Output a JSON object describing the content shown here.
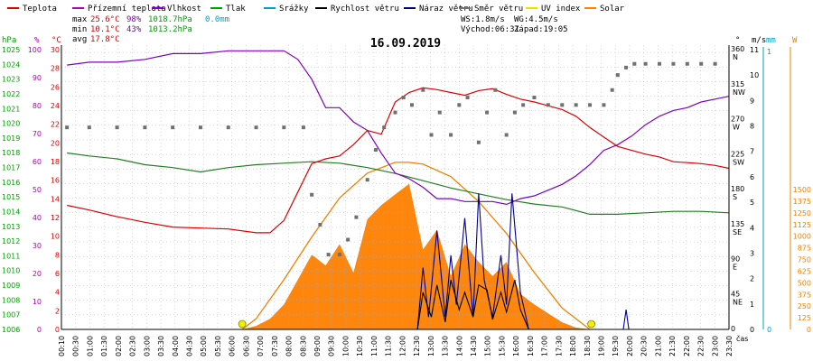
{
  "chart_data": {
    "type": "line",
    "title": "16.09.2019",
    "legend": [
      {
        "name": "Teplota",
        "color": "#e00000"
      },
      {
        "name": "Přízemní teplota",
        "color": "#b000b0"
      },
      {
        "name": "Vlhkost",
        "color": "#8000c0"
      },
      {
        "name": "Tlak",
        "color": "#00a000"
      },
      {
        "name": "Srážky",
        "color": "#00a0c0"
      },
      {
        "name": "Rychlost větru",
        "color": "#000000"
      },
      {
        "name": "Náraz větru",
        "color": "#000090"
      },
      {
        "name": "Směr větru",
        "color": "#707070"
      },
      {
        "name": "UV index",
        "color": "#f0e000"
      },
      {
        "name": "Solar",
        "color": "#ff8000"
      }
    ],
    "stats": {
      "max_prefix": "max",
      "max_temp": "25.6°C",
      "max_hum": "98%",
      "max_press": "1018.7hPa",
      "max_rain": "0.0mm",
      "min_prefix": "min",
      "min_temp": "10.1°C",
      "min_hum": "43%",
      "min_press": "1013.2hPa",
      "avg_prefix": "avg",
      "avg_temp": "17.8°C",
      "ws": "WS:1.8m/s",
      "wg": "WG:4.5m/s",
      "sunrise": "Východ:06:31",
      "sunset": "Západ:19:05"
    },
    "axes": {
      "hpa_unit": "hPa",
      "pct_unit": "%",
      "c_unit": "°C",
      "dir_unit": "°",
      "ms_unit": "m/s",
      "mm_unit": "mm",
      "w_unit": "W",
      "xlabel": "čas",
      "hpa_ticks": [
        "1025",
        "1024",
        "1023",
        "1022",
        "1021",
        "1020",
        "1019",
        "1018",
        "1017",
        "1016",
        "1015",
        "1014",
        "1013",
        "1012",
        "1011",
        "1010",
        "1009",
        "1008",
        "1007",
        "1006"
      ],
      "pct_ticks": [
        "100",
        "90",
        "80",
        "70",
        "60",
        "50",
        "40",
        "30",
        "20",
        "10",
        "0"
      ],
      "c_ticks": [
        "30",
        "28",
        "26",
        "24",
        "22",
        "20",
        "18",
        "16",
        "14",
        "12",
        "10",
        "8",
        "6",
        "4",
        "2",
        "0"
      ],
      "dir_ticks": [
        [
          "360",
          "N"
        ],
        [
          "315",
          "NW"
        ],
        [
          "270",
          "W"
        ],
        [
          "225",
          "SW"
        ],
        [
          "180",
          "S"
        ],
        [
          "135",
          "SE"
        ],
        [
          "90",
          "E"
        ],
        [
          "45",
          "NE"
        ],
        [
          "0",
          ""
        ]
      ],
      "ms_ticks": [
        "11",
        "10",
        "9",
        "8",
        "7",
        "6",
        "5",
        "4",
        "3",
        "2",
        "1",
        "0"
      ],
      "mm_ticks": [
        "1",
        "0"
      ],
      "w_ticks": [
        "1500",
        "1375",
        "1250",
        "1125",
        "1000",
        "875",
        "750",
        "625",
        "500",
        "375",
        "250",
        "125",
        "0"
      ],
      "x_ticks": [
        "00:10",
        "00:30",
        "01:00",
        "01:30",
        "02:00",
        "02:30",
        "03:00",
        "03:30",
        "04:00",
        "04:30",
        "05:00",
        "05:30",
        "06:00",
        "06:30",
        "07:00",
        "07:30",
        "08:00",
        "08:30",
        "09:00",
        "09:30",
        "10:00",
        "10:30",
        "11:00",
        "11:30",
        "12:00",
        "12:30",
        "13:00",
        "13:30",
        "14:00",
        "14:30",
        "15:00",
        "15:30",
        "16:00",
        "16:30",
        "17:00",
        "17:30",
        "18:00",
        "18:30",
        "19:00",
        "19:30",
        "20:00",
        "20:30",
        "21:00",
        "21:30",
        "22:00",
        "22:30",
        "23:00",
        "23:30"
      ],
      "x_range_hours": [
        0,
        24
      ],
      "temp_range": [
        0,
        30
      ],
      "hum_range": [
        0,
        100
      ],
      "press_range": [
        1006,
        1025.5
      ],
      "wind_range": [
        0,
        11.5
      ],
      "dir_range": [
        0,
        380
      ],
      "solar_range": [
        0,
        1600
      ]
    },
    "temperature": {
      "x": [
        0.2,
        1,
        2,
        3,
        4,
        5,
        6,
        7,
        7.5,
        8,
        8.5,
        9,
        9.5,
        10,
        10.5,
        11,
        11.5,
        12,
        12.5,
        13,
        13.5,
        14,
        14.5,
        15,
        15.5,
        16,
        16.5,
        17,
        17.5,
        18,
        18.5,
        19,
        19.5,
        20,
        20.5,
        21,
        21.5,
        22,
        22.5,
        23,
        23.5,
        24
      ],
      "y": [
        13.1,
        12.6,
        11.9,
        11.3,
        10.8,
        10.7,
        10.6,
        10.2,
        10.2,
        11.5,
        14.5,
        17.5,
        18,
        18.3,
        19.5,
        21,
        20.6,
        24,
        25,
        25.5,
        25.3,
        25,
        24.7,
        25.2,
        25.4,
        24.8,
        24.3,
        24,
        23.6,
        23.2,
        22.5,
        21.3,
        20.3,
        19.3,
        18.9,
        18.5,
        18.2,
        17.7,
        17.6,
        17.5,
        17.3,
        17
      ]
    },
    "humidity": {
      "x": [
        0.2,
        1,
        2,
        3,
        4,
        5,
        6,
        7,
        8,
        8.5,
        9,
        9.5,
        10,
        10.5,
        11,
        11.5,
        12,
        12.5,
        13,
        13.5,
        14,
        14.5,
        15,
        15.5,
        16,
        16.5,
        17,
        17.5,
        18,
        18.5,
        19,
        19.5,
        20,
        20.5,
        21,
        21.5,
        22,
        22.5,
        23,
        23.5,
        24
      ],
      "y": [
        93,
        94,
        94,
        95,
        97,
        97,
        98,
        98,
        98,
        95,
        88,
        78,
        78,
        73,
        70,
        62,
        55,
        53,
        50,
        46,
        46,
        45,
        45,
        45,
        44,
        46,
        47,
        49,
        51,
        54,
        58,
        63,
        65,
        68,
        72,
        75,
        77,
        78,
        80,
        81,
        82
      ]
    },
    "pressure": {
      "x": [
        0.2,
        1,
        2,
        3,
        4,
        5,
        6,
        7,
        8,
        9,
        10,
        11,
        12,
        13,
        14,
        15,
        16,
        17,
        18,
        19,
        20,
        21,
        22,
        23,
        24
      ],
      "y": [
        1018.1,
        1017.9,
        1017.7,
        1017.3,
        1017.1,
        1016.8,
        1017.1,
        1017.3,
        1017.4,
        1017.5,
        1017.4,
        1017.1,
        1016.7,
        1016.2,
        1015.7,
        1015.3,
        1014.9,
        1014.6,
        1014.4,
        1013.9,
        1013.9,
        1014,
        1014.1,
        1014.1,
        1014.0
      ]
    },
    "wind_direction": {
      "x": [
        0.2,
        1,
        2,
        3,
        4,
        5,
        6,
        7,
        8,
        8.7,
        9,
        9.3,
        9.6,
        10,
        10.3,
        10.6,
        11,
        11.3,
        11.6,
        12,
        12.3,
        12.6,
        13,
        13.3,
        13.6,
        14,
        14.3,
        14.6,
        15,
        15.3,
        15.6,
        16,
        16.3,
        16.6,
        17,
        17.5,
        18,
        18.5,
        19,
        19.5,
        19.8,
        20,
        20.3,
        20.6,
        21,
        21.5,
        22,
        22.5,
        23,
        23.5
      ],
      "y": [
        270,
        270,
        270,
        270,
        270,
        270,
        270,
        270,
        270,
        270,
        180,
        140,
        100,
        100,
        120,
        150,
        200,
        240,
        270,
        290,
        310,
        300,
        320,
        260,
        290,
        260,
        300,
        310,
        250,
        290,
        320,
        260,
        290,
        300,
        310,
        300,
        300,
        300,
        300,
        300,
        320,
        340,
        350,
        355,
        355,
        355,
        355,
        355,
        355,
        355
      ]
    },
    "wind_speed": {
      "x": [
        12.8,
        13,
        13.3,
        13.5,
        13.8,
        14,
        14.3,
        14.5,
        14.8,
        15,
        15.3,
        15.5,
        15.8,
        16,
        16.3,
        16.5,
        16.8
      ],
      "y": [
        0,
        1.5,
        0.5,
        1.8,
        0.3,
        2,
        0.8,
        1.5,
        0.5,
        1.8,
        1.6,
        0.4,
        1.5,
        0.7,
        2,
        0.8,
        0
      ]
    },
    "wind_gust": {
      "x": [
        12.8,
        13,
        13.2,
        13.5,
        13.8,
        14,
        14.2,
        14.5,
        14.8,
        15,
        15.2,
        15.5,
        15.8,
        16,
        16.2,
        16.5,
        16.8,
        20.2,
        20.3,
        20.4
      ],
      "y": [
        0,
        2.5,
        0.5,
        4,
        0.5,
        3,
        1,
        4.5,
        0.5,
        5.5,
        2,
        0.5,
        3,
        1,
        5.5,
        1.5,
        0,
        0,
        0.8,
        0
      ]
    },
    "solar_theoretical": {
      "x": [
        6.5,
        7,
        8,
        9,
        10,
        11,
        12,
        12.5,
        13,
        14,
        15,
        16,
        17,
        18,
        19
      ],
      "y": [
        0,
        60,
        280,
        520,
        740,
        880,
        940,
        940,
        930,
        860,
        720,
        540,
        320,
        120,
        0
      ]
    },
    "solar_measured": {
      "x": [
        6.5,
        7,
        7.5,
        8,
        8.5,
        9,
        9.5,
        10,
        10.5,
        11,
        11.5,
        12,
        12.5,
        13,
        13.5,
        14,
        14.5,
        15,
        15.5,
        16,
        16.5,
        17,
        17.5,
        18,
        18.5,
        19
      ],
      "y": [
        0,
        20,
        60,
        140,
        280,
        420,
        360,
        480,
        320,
        620,
        700,
        760,
        820,
        450,
        560,
        300,
        480,
        380,
        300,
        380,
        200,
        140,
        90,
        40,
        10,
        0
      ]
    },
    "uv_index": {
      "x": [
        6.5,
        19.05
      ],
      "y": [
        0,
        0
      ]
    }
  }
}
